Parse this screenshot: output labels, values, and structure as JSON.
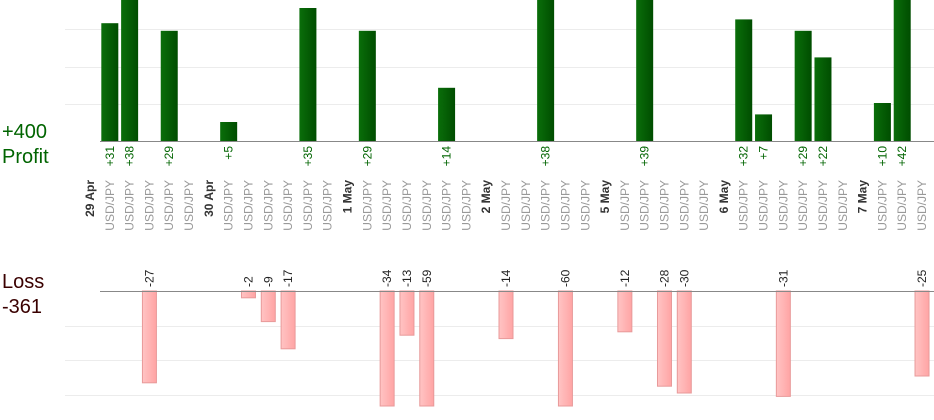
{
  "profit_total": "+400",
  "profit_label": "Profit",
  "loss_label": "Loss",
  "loss_total": "-361",
  "days": [
    {
      "date": "29 Apr",
      "trades": [
        {
          "pair": "USD/JPY",
          "value": 31,
          "value_label": "+31"
        },
        {
          "pair": "USD/JPY",
          "value": 38,
          "value_label": "+38"
        },
        {
          "pair": "USD/JPY",
          "value": -27
        },
        {
          "pair": "USD/JPY",
          "value": 29,
          "value_label": "+29"
        },
        {
          "pair": "USD/JPY"
        }
      ]
    },
    {
      "date": "30 Apr",
      "trades": [
        {
          "pair": "USD/JPY",
          "value": 5,
          "value_label": "+5"
        },
        {
          "pair": "USD/JPY",
          "value": -2
        },
        {
          "pair": "USD/JPY",
          "value": -9
        },
        {
          "pair": "USD/JPY",
          "value": -17
        },
        {
          "pair": "USD/JPY",
          "value": 35,
          "value_label": "+35"
        },
        {
          "pair": "USD/JPY"
        }
      ]
    },
    {
      "date": "1 May",
      "trades": [
        {
          "pair": "USD/JPY",
          "value": 29,
          "value_label": "+29"
        },
        {
          "pair": "USD/JPY",
          "value": -34
        },
        {
          "pair": "USD/JPY",
          "value": -13
        },
        {
          "pair": "USD/JPY",
          "value": -59
        },
        {
          "pair": "USD/JPY",
          "value": 14,
          "value_label": "+14"
        },
        {
          "pair": "USD/JPY"
        }
      ]
    },
    {
      "date": "2 May",
      "trades": [
        {
          "pair": "USD/JPY",
          "value": -14
        },
        {
          "pair": "USD/JPY"
        },
        {
          "pair": "USD/JPY",
          "value": 38,
          "value_label": "+38"
        },
        {
          "pair": "USD/JPY",
          "value": -60
        },
        {
          "pair": "USD/JPY"
        }
      ]
    },
    {
      "date": "5 May",
      "trades": [
        {
          "pair": "USD/JPY",
          "value": -12
        },
        {
          "pair": "USD/JPY",
          "value": 39,
          "value_label": "+39"
        },
        {
          "pair": "USD/JPY",
          "value": -28
        },
        {
          "pair": "USD/JPY",
          "value": -30
        },
        {
          "pair": "USD/JPY"
        }
      ]
    },
    {
      "date": "6 May",
      "trades": [
        {
          "pair": "USD/JPY",
          "value": 32,
          "value_label": "+32"
        },
        {
          "pair": "USD/JPY",
          "value": 7,
          "value_label": "+7"
        },
        {
          "pair": "USD/JPY",
          "value": -31
        },
        {
          "pair": "USD/JPY",
          "value": 29,
          "value_label": "+29"
        },
        {
          "pair": "USD/JPY",
          "value": 22,
          "value_label": "+22"
        },
        {
          "pair": "USD/JPY"
        }
      ]
    },
    {
      "date": "7 May",
      "trades": [
        {
          "pair": "USD/JPY",
          "value": 10,
          "value_label": "+10"
        },
        {
          "pair": "USD/JPY",
          "value": 42,
          "value_label": "+42"
        },
        {
          "pair": "USD/JPY",
          "value": -25
        }
      ]
    }
  ]
}
